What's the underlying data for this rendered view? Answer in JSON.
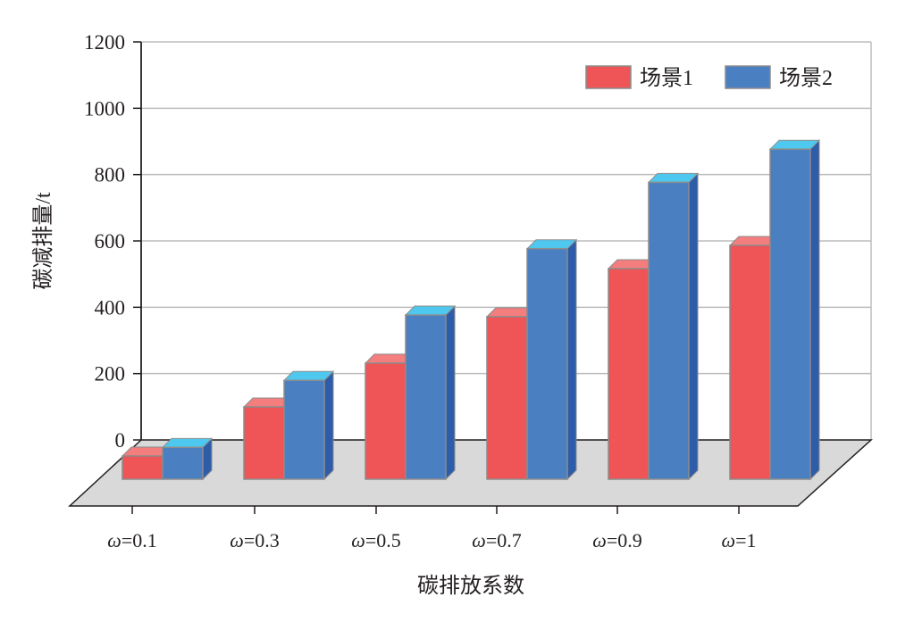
{
  "chart_data": {
    "type": "bar",
    "style": "3d-clustered",
    "categories": [
      "ω=0.1",
      "ω=0.3",
      "ω=0.5",
      "ω=0.7",
      "ω=0.9",
      "ω=1"
    ],
    "series": [
      {
        "name": "场景1",
        "values": [
          70,
          218,
          350,
          490,
          635,
          705
        ]
      },
      {
        "name": "场景2",
        "values": [
          96,
          298,
          495,
          695,
          895,
          995
        ]
      }
    ],
    "xlabel": "碳排放系数",
    "ylabel": "碳减排量/t",
    "ylim": [
      0,
      1200
    ],
    "yticks": [
      0,
      200,
      400,
      600,
      800,
      1000,
      1200
    ],
    "grid": true,
    "legend_position": "top-right",
    "colors": {
      "series_front": [
        "#ef5456",
        "#4a7fc2"
      ],
      "series_top": [
        "#f47d7e",
        "#4fc8ef"
      ],
      "series_side": [
        "#c43a3c",
        "#2d5da8"
      ],
      "floor": "#d9d9d9",
      "grid": "#bdbdbd",
      "axis": "#231f20"
    }
  }
}
